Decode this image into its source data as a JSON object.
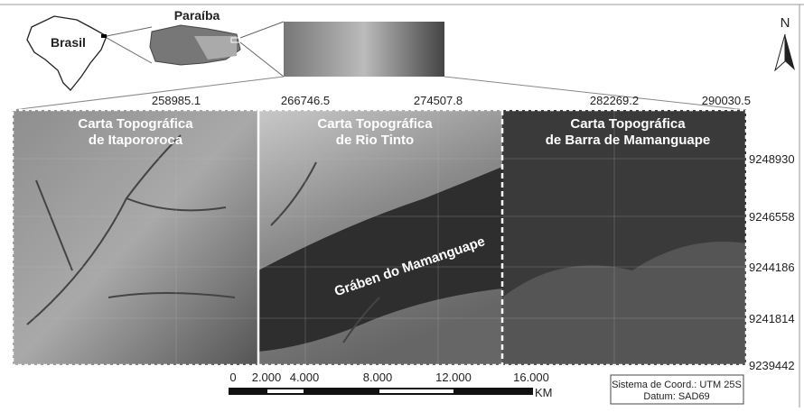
{
  "inset": {
    "country": "Brasil",
    "state": "Paraíba"
  },
  "north": "N",
  "panels": [
    "Carta Topográfica\nde Itapororoca",
    "Carta Topográfica\nde Rio Tinto",
    "Carta Topográfica\nde Barra de Mamanguape"
  ],
  "feature": "Gráben do Mamanguape",
  "x_coords": [
    "258985.1",
    "266746.5",
    "274507.8",
    "282269.2",
    "290030.5"
  ],
  "y_coords": [
    "9248930",
    "9246558",
    "9244186",
    "9241814",
    "9239442"
  ],
  "scale_bar": {
    "labels": [
      "0",
      "2.000",
      "4.000",
      "8.000",
      "12.000",
      "16.000"
    ],
    "unit": "KM"
  },
  "info": [
    "Sistema de Coord.: UTM 25S",
    "Datum: SAD69"
  ]
}
